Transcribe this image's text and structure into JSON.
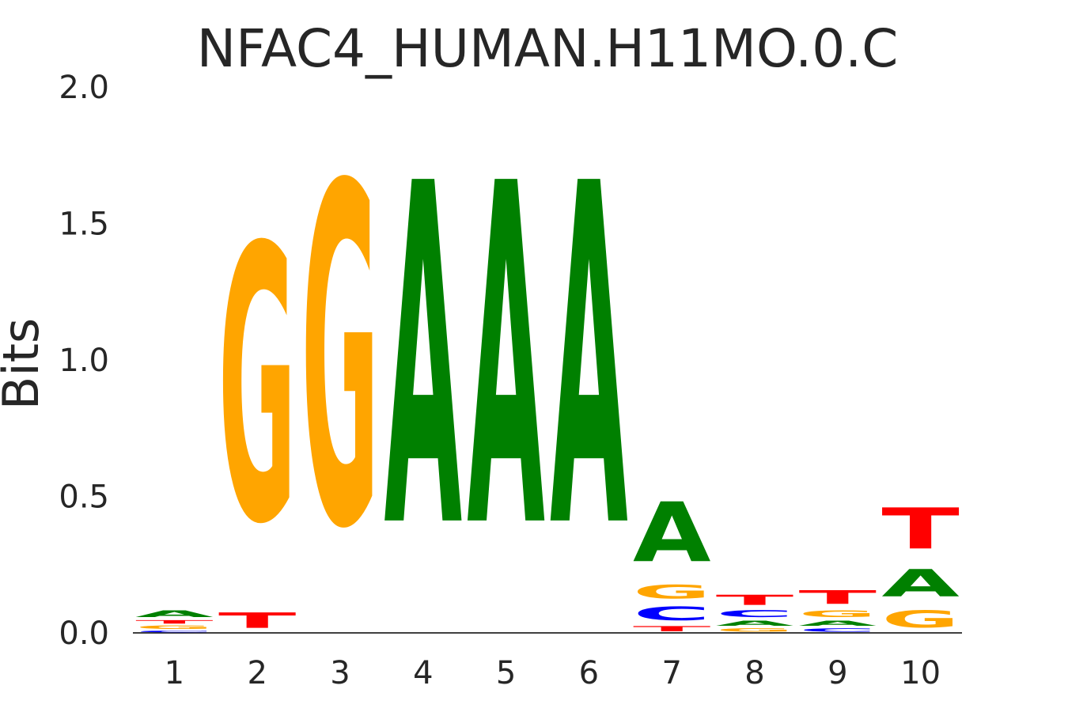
{
  "chart_data": {
    "type": "sequence-logo",
    "title": "NFAC4_HUMAN.H11MO.0.C",
    "xlabel": "",
    "ylabel": "Bits",
    "ylim": [
      0,
      2
    ],
    "yticks": [
      "0.0",
      "0.5",
      "1.0",
      "1.5",
      "2.0"
    ],
    "ytick_values": [
      0,
      0.5,
      1,
      1.5,
      2
    ],
    "grid": false,
    "colors": {
      "A": "#008000",
      "C": "#0000ff",
      "G": "#ffa500",
      "T": "#ff0000"
    },
    "positions": [
      {
        "label": "1",
        "letters": [
          {
            "base": "C",
            "bits": 0.01
          },
          {
            "base": "G",
            "bits": 0.02
          },
          {
            "base": "T",
            "bits": 0.02
          },
          {
            "base": "A",
            "bits": 0.04
          }
        ]
      },
      {
        "label": "2",
        "letters": [
          {
            "base": "T",
            "bits": 0.09
          },
          {
            "base": "G",
            "bits": 1.61
          }
        ]
      },
      {
        "label": "3",
        "letters": [
          {
            "base": "G",
            "bits": 1.99
          }
        ]
      },
      {
        "label": "4",
        "letters": [
          {
            "base": "A",
            "bits": 2.0
          }
        ]
      },
      {
        "label": "5",
        "letters": [
          {
            "base": "A",
            "bits": 2.0
          }
        ]
      },
      {
        "label": "6",
        "letters": [
          {
            "base": "A",
            "bits": 2.0
          }
        ]
      },
      {
        "label": "7",
        "letters": [
          {
            "base": "T",
            "bits": 0.03
          },
          {
            "base": "C",
            "bits": 0.08
          },
          {
            "base": "G",
            "bits": 0.08
          },
          {
            "base": "A",
            "bits": 0.35
          }
        ]
      },
      {
        "label": "8",
        "letters": [
          {
            "base": "G",
            "bits": 0.02
          },
          {
            "base": "A",
            "bits": 0.03
          },
          {
            "base": "C",
            "bits": 0.04
          },
          {
            "base": "T",
            "bits": 0.06
          }
        ]
      },
      {
        "label": "9",
        "letters": [
          {
            "base": "C",
            "bits": 0.02
          },
          {
            "base": "A",
            "bits": 0.03
          },
          {
            "base": "G",
            "bits": 0.04
          },
          {
            "base": "T",
            "bits": 0.08
          }
        ]
      },
      {
        "label": "10",
        "letters": [
          {
            "base": "G",
            "bits": 0.1
          },
          {
            "base": "A",
            "bits": 0.16
          },
          {
            "base": "T",
            "bits": 0.24
          }
        ]
      }
    ]
  }
}
